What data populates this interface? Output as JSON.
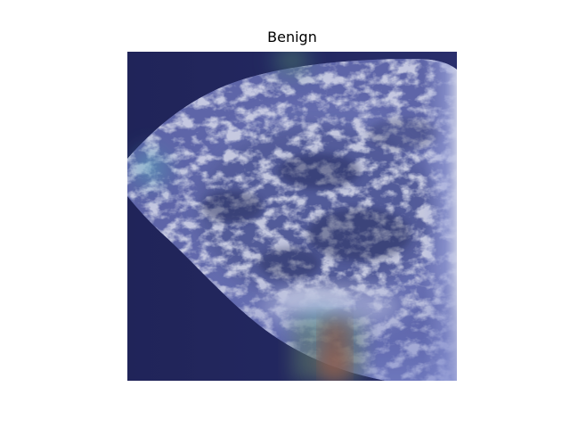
{
  "figure": {
    "title": "Benign",
    "image": {
      "description": "mammogram-with-heatmap-overlay"
    }
  }
}
